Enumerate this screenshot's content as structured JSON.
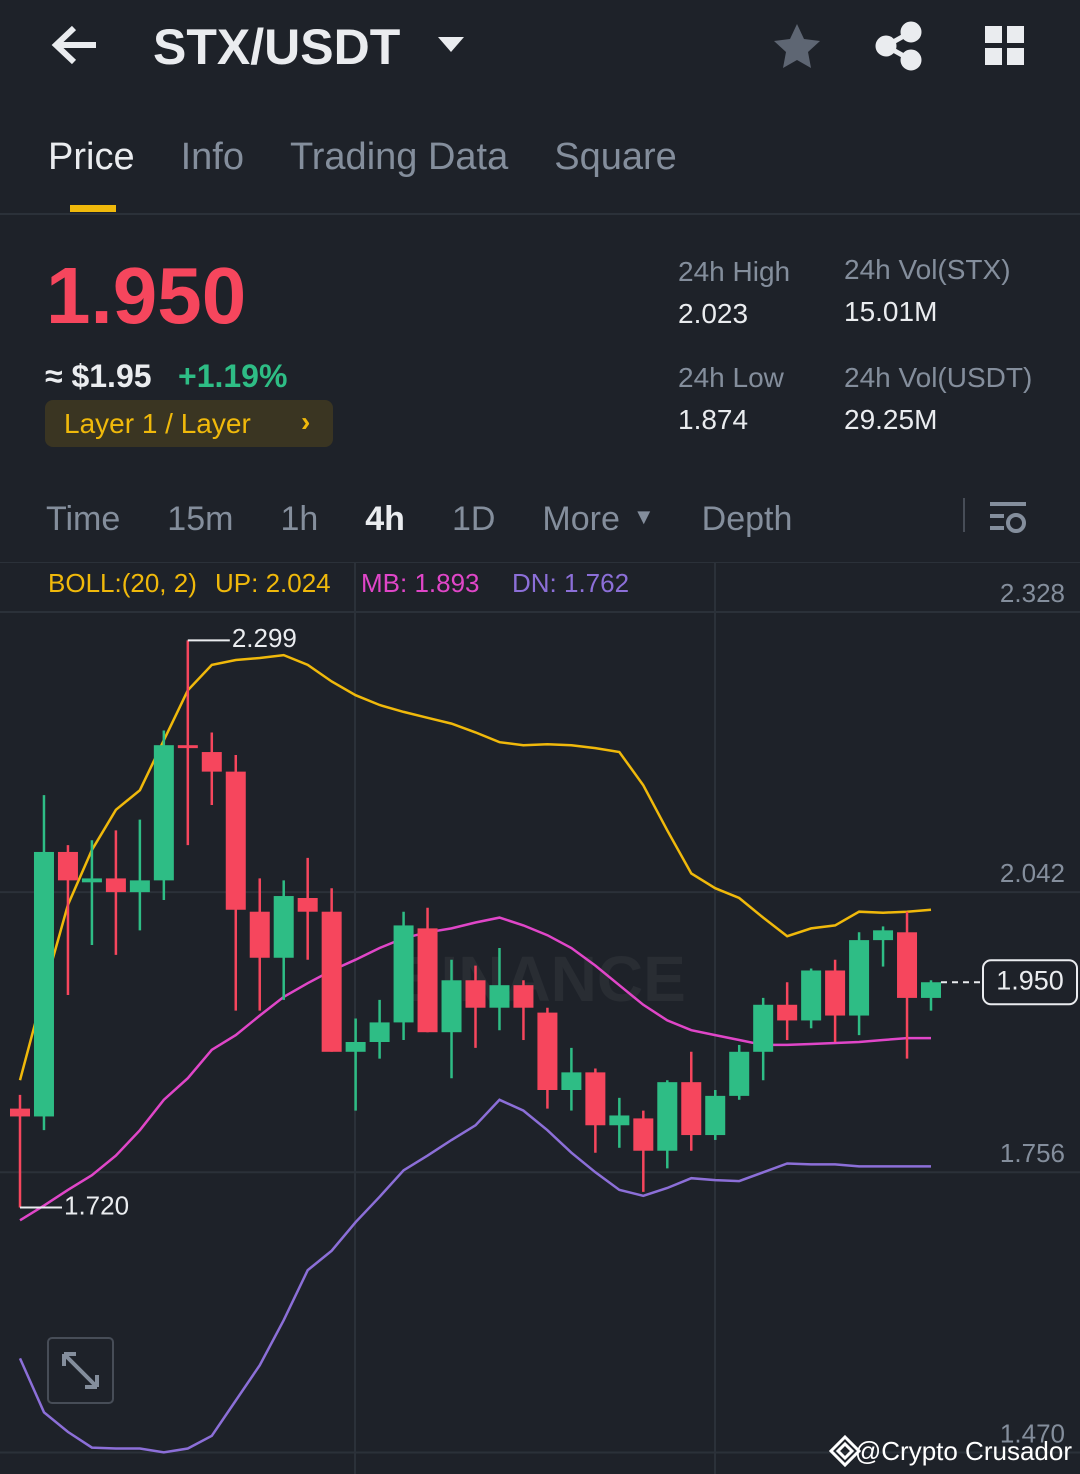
{
  "header": {
    "pair": "STX/USDT"
  },
  "tabs": [
    "Price",
    "Info",
    "Trading Data",
    "Square"
  ],
  "active_tab": 0,
  "price": {
    "last": "1.950",
    "usd": "≈ $1.95",
    "change": "+1.19%",
    "tag": "Layer 1 / Layer"
  },
  "stats": [
    {
      "label": "24h High",
      "value": "2.023"
    },
    {
      "label": "24h Vol(STX)",
      "value": "15.01M"
    },
    {
      "label": "24h Low",
      "value": "1.874"
    },
    {
      "label": "24h Vol(USDT)",
      "value": "29.25M"
    }
  ],
  "intervals": [
    "Time",
    "15m",
    "1h",
    "4h",
    "1D",
    "More",
    "Depth"
  ],
  "active_interval": 3,
  "indicator": {
    "name": "BOLL:(20, 2)",
    "up": "UP: 2.024",
    "mb": "MB: 1.893",
    "dn": "DN: 1.762"
  },
  "chart_data": {
    "type": "candlestick",
    "watermark": "BINANCE",
    "up_color": "#2ebd85",
    "down_color": "#f6465d",
    "open": [
      1.821,
      1.813,
      2.083,
      2.052,
      2.056,
      2.042,
      2.054,
      2.192,
      2.185,
      2.165,
      2.022,
      1.975,
      2.036,
      2.022,
      1.879,
      1.889,
      1.909,
      2.005,
      1.899,
      1.952,
      1.924,
      1.947,
      1.919,
      1.84,
      1.858,
      1.804,
      1.811,
      1.778,
      1.848,
      1.794,
      1.834,
      1.879,
      1.927,
      1.911,
      1.962,
      1.916,
      1.993,
      2.001,
      1.934
    ],
    "high": [
      1.835,
      2.141,
      2.09,
      2.095,
      2.105,
      2.116,
      2.207,
      2.299,
      2.205,
      2.182,
      2.056,
      2.054,
      2.077,
      2.046,
      1.913,
      1.932,
      2.022,
      2.026,
      1.973,
      1.967,
      1.985,
      1.952,
      1.924,
      1.883,
      1.862,
      1.832,
      1.819,
      1.85,
      1.879,
      1.84,
      1.886,
      1.934,
      1.95,
      1.964,
      1.973,
      2.001,
      2.007,
      2.022,
      1.952
    ],
    "low": [
      1.72,
      1.799,
      1.937,
      1.988,
      1.978,
      2.003,
      2.034,
      2.09,
      2.131,
      1.921,
      1.921,
      1.932,
      1.973,
      1.879,
      1.819,
      1.872,
      1.891,
      1.899,
      1.852,
      1.883,
      1.901,
      1.891,
      1.821,
      1.819,
      1.776,
      1.781,
      1.736,
      1.76,
      1.778,
      1.789,
      1.83,
      1.85,
      1.891,
      1.903,
      1.889,
      1.896,
      1.966,
      1.872,
      1.921
    ],
    "close": [
      1.813,
      2.083,
      2.054,
      2.056,
      2.042,
      2.054,
      2.192,
      2.189,
      2.165,
      2.024,
      1.975,
      2.038,
      2.022,
      1.879,
      1.889,
      1.909,
      2.008,
      1.899,
      1.952,
      1.924,
      1.947,
      1.924,
      1.84,
      1.858,
      1.804,
      1.814,
      1.778,
      1.848,
      1.794,
      1.834,
      1.879,
      1.927,
      1.911,
      1.962,
      1.916,
      1.993,
      2.003,
      1.934,
      1.95
    ],
    "bands": [
      {
        "name": "UP",
        "color": "#f0b90b",
        "values": [
          1.85,
          1.942,
          2.029,
          2.085,
          2.126,
          2.146,
          2.197,
          2.248,
          2.274,
          2.279,
          2.281,
          2.284,
          2.274,
          2.257,
          2.243,
          2.233,
          2.226,
          2.22,
          2.214,
          2.205,
          2.195,
          2.192,
          2.193,
          2.192,
          2.189,
          2.185,
          2.151,
          2.105,
          2.061,
          2.046,
          2.036,
          2.016,
          1.997,
          2.005,
          2.008,
          2.022,
          2.021,
          2.022,
          2.024
        ]
      },
      {
        "name": "MB",
        "color": "#e046c8",
        "values": [
          1.707,
          1.722,
          1.738,
          1.753,
          1.773,
          1.799,
          1.83,
          1.852,
          1.881,
          1.896,
          1.916,
          1.935,
          1.949,
          1.962,
          1.973,
          1.985,
          1.995,
          2.001,
          2.005,
          2.011,
          2.016,
          2.008,
          1.998,
          1.985,
          1.967,
          1.947,
          1.927,
          1.911,
          1.901,
          1.896,
          1.891,
          1.886,
          1.886,
          1.887,
          1.888,
          1.889,
          1.891,
          1.893,
          1.893
        ]
      },
      {
        "name": "DN",
        "color": "#8c6fd8",
        "values": [
          1.566,
          1.511,
          1.491,
          1.475,
          1.474,
          1.474,
          1.47,
          1.474,
          1.487,
          1.523,
          1.559,
          1.605,
          1.656,
          1.676,
          1.705,
          1.731,
          1.758,
          1.773,
          1.789,
          1.804,
          1.83,
          1.819,
          1.799,
          1.776,
          1.756,
          1.738,
          1.732,
          1.74,
          1.75,
          1.748,
          1.747,
          1.756,
          1.765,
          1.764,
          1.764,
          1.762,
          1.762,
          1.762,
          1.762
        ]
      }
    ],
    "ylim": [
      1.448,
      2.379
    ],
    "yticks": [
      2.328,
      2.042,
      1.756,
      {
        "value": 1.47,
        "label": "1.470"
      }
    ],
    "high_label": 2.299,
    "low_label": {
      "value": 1.72,
      "label": "1.720"
    },
    "current_price": {
      "value": 1.95,
      "label": "1.950"
    }
  },
  "watermark": "@Crypto Crusador"
}
